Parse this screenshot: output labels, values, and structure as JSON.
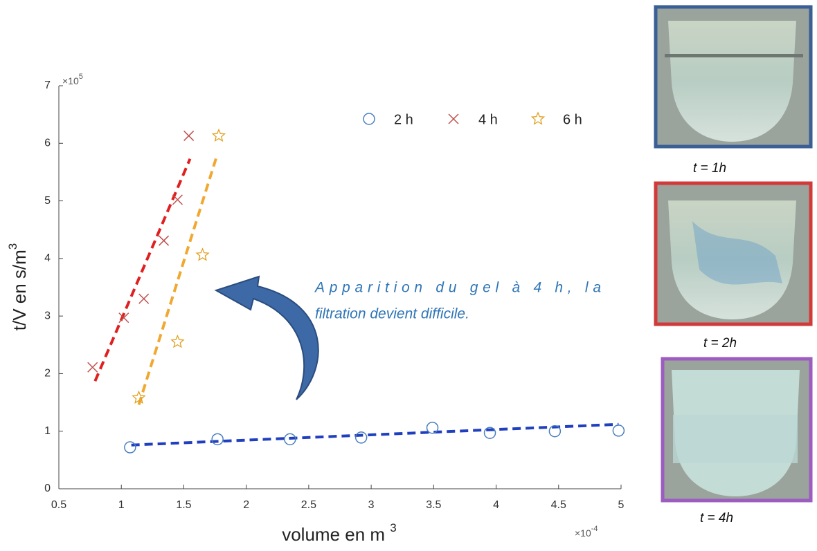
{
  "chart_data": {
    "type": "scatter",
    "y_label": {
      "text": "t/V en s/m",
      "sup": "3"
    },
    "x_label": {
      "text": "volume en m ",
      "sup": "3"
    },
    "y_multiplier": {
      "base": "×10",
      "sup": "5"
    },
    "x_multiplier": {
      "base": "×10",
      "sup": "-4"
    },
    "xlim": [
      0.5,
      5
    ],
    "ylim": [
      0,
      7
    ],
    "xticks": [
      0.5,
      1,
      1.5,
      2,
      2.5,
      3,
      3.5,
      4,
      4.5,
      5
    ],
    "yticks": [
      0,
      1,
      2,
      3,
      4,
      5,
      6,
      7
    ],
    "series": [
      {
        "name": "2 h",
        "marker": "circle",
        "color": "#4a7ec0",
        "fit_color": "#1f3fbf",
        "x": [
          1.07,
          1.77,
          2.35,
          2.92,
          3.49,
          3.95,
          4.47,
          4.98
        ],
        "values": [
          0.72,
          0.86,
          0.86,
          0.89,
          1.06,
          0.97,
          1.0,
          1.01
        ],
        "fit": {
          "x": [
            1.08,
            4.98
          ],
          "values": [
            0.76,
            1.12
          ]
        }
      },
      {
        "name": "4 h",
        "marker": "cross",
        "color": "#c0504d",
        "fit_color": "#e02020",
        "x": [
          0.77,
          1.02,
          1.18,
          1.34,
          1.45,
          1.54
        ],
        "values": [
          2.11,
          2.97,
          3.3,
          4.31,
          5.02,
          6.13
        ],
        "fit": {
          "x": [
            0.79,
            1.55
          ],
          "values": [
            1.87,
            5.73
          ]
        }
      },
      {
        "name": "6 h",
        "marker": "star",
        "color": "#e0a020",
        "fit_color": "#f0a830",
        "x": [
          1.14,
          1.45,
          1.65,
          1.78
        ],
        "values": [
          1.58,
          2.55,
          4.06,
          6.13
        ],
        "fit": {
          "x": [
            1.14,
            1.76
          ],
          "values": [
            1.46,
            5.75
          ]
        }
      }
    ],
    "annotation": [
      "Apparition du gel à 4 h, la",
      "filtration devient difficile."
    ]
  },
  "photos": [
    {
      "caption": "t = 1h"
    },
    {
      "caption": "t = 2h"
    },
    {
      "caption": "t = 4h"
    }
  ]
}
